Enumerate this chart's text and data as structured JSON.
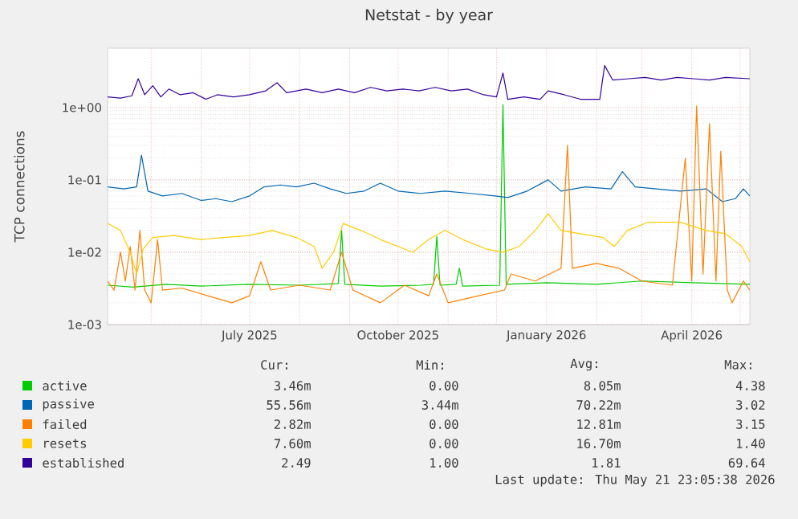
{
  "chart_data": {
    "type": "line",
    "title": "Netstat - by year",
    "ylabel": "TCP connections",
    "log": "y",
    "grid": true,
    "legend": "bottom",
    "marker": "none",
    "line_style": "solid",
    "xlim": [
      "2025-04-04",
      "2026-05-07"
    ],
    "xticks": [
      {
        "value": "2025-05-01",
        "label": null
      },
      {
        "value": "2025-06-01",
        "label": null
      },
      {
        "value": "2025-07-01",
        "label": "July 2025"
      },
      {
        "value": "2025-08-01",
        "label": null
      },
      {
        "value": "2025-09-01",
        "label": null
      },
      {
        "value": "2025-10-01",
        "label": "October 2025"
      },
      {
        "value": "2025-11-01",
        "label": null
      },
      {
        "value": "2025-12-01",
        "label": null
      },
      {
        "value": "2026-01-01",
        "label": "January 2026"
      },
      {
        "value": "2026-02-01",
        "label": null
      },
      {
        "value": "2026-03-01",
        "label": null
      },
      {
        "value": "2026-04-01",
        "label": "April 2026"
      },
      {
        "value": "2026-05-01",
        "label": null
      }
    ],
    "ylim": [
      0.001,
      6.6
    ],
    "yticks": [
      {
        "value": 0.001,
        "label": "1e-03"
      },
      {
        "value": 0.01,
        "label": "1e-02"
      },
      {
        "value": 0.1,
        "label": "1e-01"
      },
      {
        "value": 1,
        "label": "1e+00"
      }
    ],
    "series": [
      {
        "name": "active",
        "color": "#00cc00",
        "x": [
          "2025-04-04",
          "2025-04-20",
          "2025-05-10",
          "2025-06-01",
          "2025-07-01",
          "2025-08-01",
          "2025-08-25",
          "2025-08-27",
          "2025-08-29",
          "2025-09-20",
          "2025-10-15",
          "2025-10-23",
          "2025-10-25",
          "2025-10-27",
          "2025-11-06",
          "2025-11-08",
          "2025-11-10",
          "2025-12-03",
          "2025-12-05",
          "2025-12-07",
          "2026-01-01",
          "2026-02-01",
          "2026-03-01",
          "2026-04-01",
          "2026-05-07"
        ],
        "values": [
          0.0035,
          0.0033,
          0.0036,
          0.0034,
          0.0036,
          0.0035,
          0.0037,
          0.02,
          0.0036,
          0.0034,
          0.0035,
          0.0036,
          0.0166,
          0.0035,
          0.0036,
          0.006,
          0.0034,
          0.0035,
          1.1,
          0.0036,
          0.0038,
          0.0036,
          0.004,
          0.0038,
          0.0036
        ]
      },
      {
        "name": "passive",
        "color": "#0066b3",
        "x": [
          "2025-04-04",
          "2025-04-14",
          "2025-04-22",
          "2025-04-25",
          "2025-04-29",
          "2025-05-08",
          "2025-05-20",
          "2025-06-01",
          "2025-06-10",
          "2025-06-20",
          "2025-07-01",
          "2025-07-10",
          "2025-07-20",
          "2025-07-30",
          "2025-08-10",
          "2025-08-20",
          "2025-08-30",
          "2025-09-10",
          "2025-09-20",
          "2025-10-01",
          "2025-10-15",
          "2025-10-30",
          "2025-11-15",
          "2025-11-30",
          "2025-12-08",
          "2025-12-20",
          "2026-01-02",
          "2026-01-10",
          "2026-01-25",
          "2026-02-10",
          "2026-02-17",
          "2026-02-25",
          "2026-03-10",
          "2026-03-25",
          "2026-04-10",
          "2026-04-20",
          "2026-04-28",
          "2026-05-03",
          "2026-05-07"
        ],
        "values": [
          0.08,
          0.075,
          0.08,
          0.22,
          0.07,
          0.06,
          0.065,
          0.052,
          0.055,
          0.05,
          0.06,
          0.08,
          0.085,
          0.08,
          0.09,
          0.075,
          0.065,
          0.07,
          0.09,
          0.07,
          0.065,
          0.07,
          0.065,
          0.06,
          0.057,
          0.07,
          0.1,
          0.07,
          0.08,
          0.075,
          0.13,
          0.08,
          0.075,
          0.07,
          0.075,
          0.05,
          0.055,
          0.075,
          0.06
        ]
      },
      {
        "name": "failed",
        "color": "#ff8000",
        "x": [
          "2025-04-04",
          "2025-04-08",
          "2025-04-12",
          "2025-04-15",
          "2025-04-18",
          "2025-04-21",
          "2025-04-24",
          "2025-04-27",
          "2025-05-01",
          "2025-05-05",
          "2025-05-08",
          "2025-05-20",
          "2025-06-05",
          "2025-06-20",
          "2025-07-01",
          "2025-07-08",
          "2025-07-14",
          "2025-08-01",
          "2025-08-20",
          "2025-08-27",
          "2025-09-03",
          "2025-09-20",
          "2025-10-05",
          "2025-10-20",
          "2025-10-25",
          "2025-11-01",
          "2025-11-20",
          "2025-12-06",
          "2025-12-10",
          "2025-12-25",
          "2026-01-10",
          "2026-01-14",
          "2026-01-17",
          "2026-02-01",
          "2026-02-15",
          "2026-03-01",
          "2026-03-20",
          "2026-03-28",
          "2026-04-01",
          "2026-04-04",
          "2026-04-08",
          "2026-04-12",
          "2026-04-16",
          "2026-04-19",
          "2026-04-23",
          "2026-04-26",
          "2026-05-03",
          "2026-05-07"
        ],
        "values": [
          0.004,
          0.003,
          0.01,
          0.004,
          0.012,
          0.003,
          0.02,
          0.003,
          0.002,
          0.015,
          0.003,
          0.0032,
          0.0025,
          0.002,
          0.0025,
          0.0074,
          0.003,
          0.0035,
          0.003,
          0.01,
          0.003,
          0.002,
          0.0035,
          0.0025,
          0.005,
          0.002,
          0.0025,
          0.003,
          0.005,
          0.004,
          0.006,
          0.3,
          0.006,
          0.007,
          0.006,
          0.004,
          0.0035,
          0.2,
          0.004,
          1.05,
          0.005,
          0.6,
          0.004,
          0.25,
          0.003,
          0.002,
          0.004,
          0.003
        ]
      },
      {
        "name": "resets",
        "color": "#ffcc00",
        "x": [
          "2025-04-04",
          "2025-04-12",
          "2025-04-18",
          "2025-04-22",
          "2025-04-26",
          "2025-05-02",
          "2025-05-15",
          "2025-06-01",
          "2025-06-15",
          "2025-07-01",
          "2025-07-15",
          "2025-07-30",
          "2025-08-10",
          "2025-08-15",
          "2025-08-22",
          "2025-08-28",
          "2025-09-08",
          "2025-09-20",
          "2025-10-01",
          "2025-10-10",
          "2025-10-20",
          "2025-10-30",
          "2025-11-10",
          "2025-11-25",
          "2025-12-05",
          "2025-12-15",
          "2025-12-25",
          "2026-01-02",
          "2026-01-10",
          "2026-01-22",
          "2026-02-05",
          "2026-02-12",
          "2026-02-20",
          "2026-03-05",
          "2026-03-25",
          "2026-04-10",
          "2026-04-22",
          "2026-05-02",
          "2026-05-07"
        ],
        "values": [
          0.025,
          0.02,
          0.01,
          0.005,
          0.011,
          0.016,
          0.017,
          0.015,
          0.016,
          0.017,
          0.02,
          0.016,
          0.012,
          0.006,
          0.01,
          0.025,
          0.02,
          0.015,
          0.012,
          0.01,
          0.015,
          0.02,
          0.015,
          0.011,
          0.01,
          0.012,
          0.02,
          0.034,
          0.02,
          0.018,
          0.016,
          0.012,
          0.02,
          0.026,
          0.026,
          0.02,
          0.018,
          0.012,
          0.0074
        ]
      },
      {
        "name": "established",
        "color": "#330099",
        "x": [
          "2025-04-04",
          "2025-04-12",
          "2025-04-19",
          "2025-04-23",
          "2025-04-27",
          "2025-05-02",
          "2025-05-07",
          "2025-05-12",
          "2025-05-19",
          "2025-05-27",
          "2025-06-04",
          "2025-06-11",
          "2025-06-21",
          "2025-07-01",
          "2025-07-11",
          "2025-07-18",
          "2025-07-24",
          "2025-08-05",
          "2025-08-15",
          "2025-08-25",
          "2025-09-04",
          "2025-09-14",
          "2025-09-24",
          "2025-10-04",
          "2025-10-14",
          "2025-10-24",
          "2025-11-03",
          "2025-11-13",
          "2025-11-23",
          "2025-12-01",
          "2025-12-05",
          "2025-12-08",
          "2025-12-18",
          "2025-12-28",
          "2026-01-02",
          "2026-01-12",
          "2026-01-22",
          "2026-02-03",
          "2026-02-06",
          "2026-02-11",
          "2026-02-21",
          "2026-03-03",
          "2026-03-13",
          "2026-03-23",
          "2026-04-02",
          "2026-04-12",
          "2026-04-22",
          "2026-05-07"
        ],
        "values": [
          1.4,
          1.35,
          1.45,
          2.5,
          1.5,
          2.0,
          1.4,
          1.8,
          1.5,
          1.6,
          1.3,
          1.5,
          1.4,
          1.5,
          1.7,
          2.2,
          1.6,
          1.8,
          1.6,
          1.8,
          1.6,
          1.9,
          1.7,
          1.8,
          1.7,
          1.9,
          1.7,
          1.8,
          1.5,
          1.4,
          3.0,
          1.3,
          1.4,
          1.3,
          1.7,
          1.5,
          1.3,
          1.3,
          3.8,
          2.4,
          2.5,
          2.6,
          2.4,
          2.6,
          2.5,
          2.4,
          2.6,
          2.5
        ]
      }
    ],
    "annotations": [
      "Cur:",
      "Min:",
      "Avg:",
      "Max:",
      "3.46m",
      "0.00",
      "8.05m",
      "4.38",
      "55.56m",
      "3.44m",
      "70.22m",
      "3.02",
      "2.82m",
      "0.00",
      "12.81m",
      "3.15",
      "7.60m",
      "0.00",
      "16.70m",
      "1.40",
      "2.49",
      "1.00",
      "1.81",
      "69.64",
      "Last update: Thu May 21 23:05:38 2026"
    ]
  }
}
